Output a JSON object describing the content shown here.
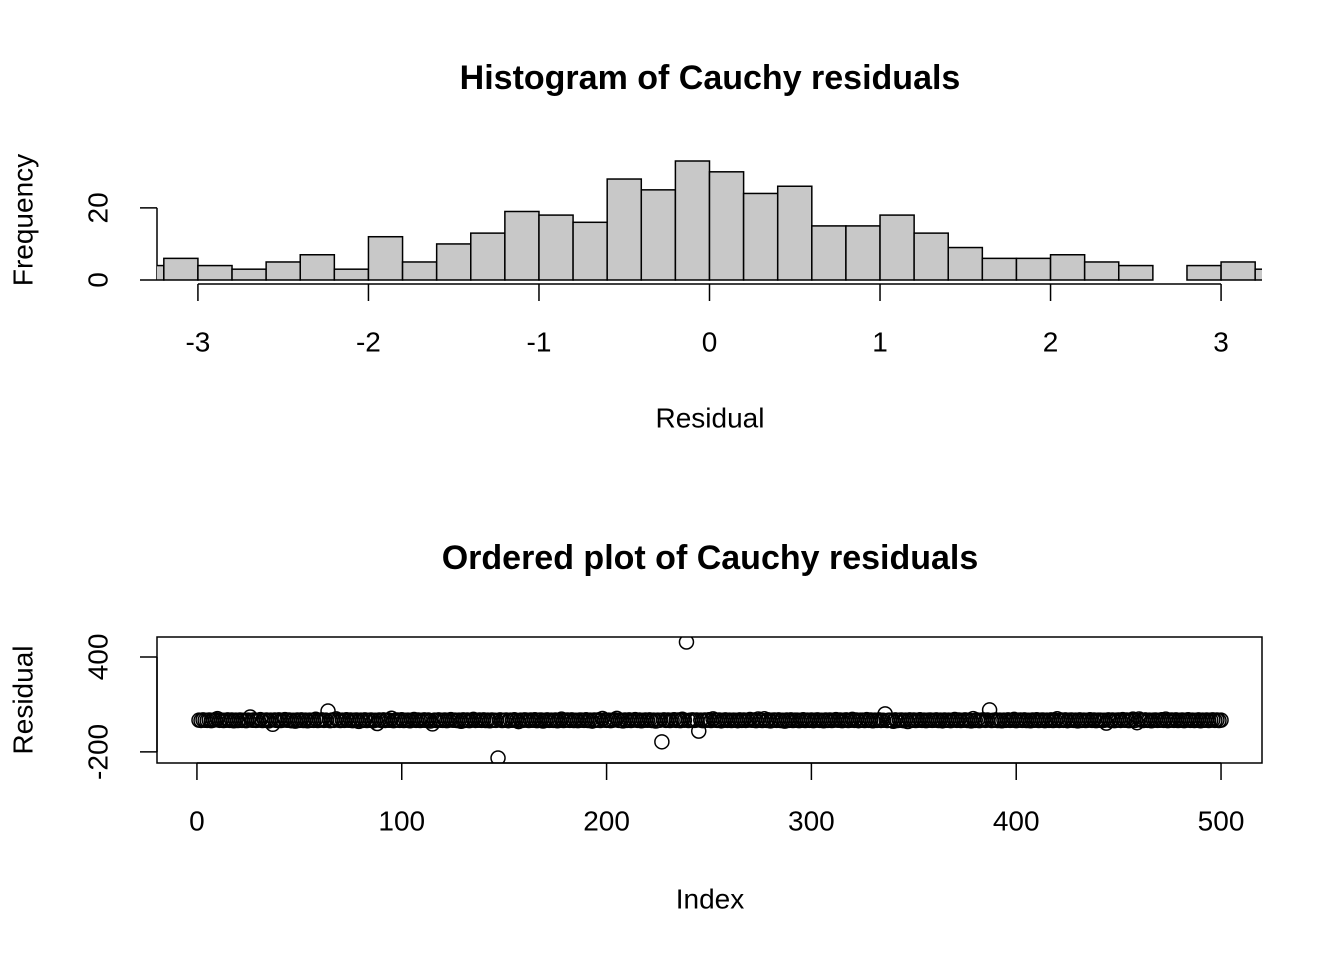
{
  "chart_data": [
    {
      "type": "histogram",
      "title": "Histogram of Cauchy residuals",
      "xlabel": "Residual",
      "ylabel": "Frequency",
      "bins": [
        -3.4,
        -3.2,
        -3.0,
        -2.8,
        -2.6,
        -2.4,
        -2.2,
        -2.0,
        -1.8,
        -1.6,
        -1.4,
        -1.2,
        -1.0,
        -0.8,
        -0.6,
        -0.4,
        -0.2,
        0,
        0.2,
        0.4,
        0.6,
        0.8,
        1.0,
        1.2,
        1.4,
        1.6,
        1.8,
        2.0,
        2.2,
        2.4,
        2.6,
        2.8,
        3.0,
        3.2,
        3.4
      ],
      "counts": [
        4,
        6,
        4,
        3,
        5,
        7,
        3,
        12,
        5,
        10,
        13,
        19,
        18,
        16,
        28,
        25,
        33,
        30,
        24,
        26,
        15,
        15,
        18,
        13,
        9,
        6,
        6,
        7,
        5,
        4,
        0,
        4,
        5,
        3
      ],
      "color": "#c8c8c8",
      "xlim": [
        -3.24,
        3.24
      ],
      "xticks": [
        -3,
        -2,
        -1,
        0,
        1,
        2,
        3
      ],
      "ylim": [
        0,
        33
      ],
      "yticks": [
        0,
        20
      ]
    },
    {
      "type": "scatter",
      "title": "Ordered plot of Cauchy residuals",
      "xlabel": "Index",
      "ylabel": "Residual",
      "x": [
        1,
        2,
        3,
        4,
        5,
        6,
        7,
        8,
        9,
        10,
        11,
        12,
        13,
        14,
        15,
        16,
        17,
        18,
        19,
        20,
        21,
        22,
        23,
        24,
        25,
        26,
        27,
        28,
        29,
        30,
        31,
        32,
        33,
        34,
        35,
        36,
        37,
        38,
        39,
        40,
        41,
        42,
        43,
        44,
        45,
        46,
        47,
        48,
        49,
        50,
        51,
        52,
        53,
        54,
        55,
        56,
        57,
        58,
        59,
        60,
        61,
        62,
        63,
        64,
        65,
        66,
        67,
        68,
        69,
        70,
        71,
        72,
        73,
        74,
        75,
        76,
        77,
        78,
        79,
        80,
        81,
        82,
        83,
        84,
        85,
        86,
        87,
        88,
        89,
        90,
        91,
        92,
        93,
        94,
        95,
        96,
        97,
        98,
        99,
        100,
        101,
        102,
        103,
        104,
        105,
        106,
        107,
        108,
        109,
        110,
        111,
        112,
        113,
        114,
        115,
        116,
        117,
        118,
        119,
        120,
        121,
        122,
        123,
        124,
        125,
        126,
        127,
        128,
        129,
        130,
        131,
        132,
        133,
        134,
        135,
        136,
        137,
        138,
        139,
        140,
        141,
        142,
        143,
        144,
        145,
        146,
        147,
        148,
        149,
        150,
        151,
        152,
        153,
        154,
        155,
        156,
        157,
        158,
        159,
        160,
        161,
        162,
        163,
        164,
        165,
        166,
        167,
        168,
        169,
        170,
        171,
        172,
        173,
        174,
        175,
        176,
        177,
        178,
        179,
        180,
        181,
        182,
        183,
        184,
        185,
        186,
        187,
        188,
        189,
        190,
        191,
        192,
        193,
        194,
        195,
        196,
        197,
        198,
        199,
        200,
        201,
        202,
        203,
        204,
        205,
        206,
        207,
        208,
        209,
        210,
        211,
        212,
        213,
        214,
        215,
        216,
        217,
        218,
        219,
        220,
        221,
        222,
        223,
        224,
        225,
        226,
        227,
        228,
        229,
        230,
        231,
        232,
        233,
        234,
        235,
        236,
        237,
        238,
        239,
        240,
        241,
        242,
        243,
        244,
        245,
        246,
        247,
        248,
        249,
        250,
        251,
        252,
        253,
        254,
        255,
        256,
        257,
        258,
        259,
        260,
        261,
        262,
        263,
        264,
        265,
        266,
        267,
        268,
        269,
        270,
        271,
        272,
        273,
        274,
        275,
        276,
        277,
        278,
        279,
        280,
        281,
        282,
        283,
        284,
        285,
        286,
        287,
        288,
        289,
        290,
        291,
        292,
        293,
        294,
        295,
        296,
        297,
        298,
        299,
        300,
        301,
        302,
        303,
        304,
        305,
        306,
        307,
        308,
        309,
        310,
        311,
        312,
        313,
        314,
        315,
        316,
        317,
        318,
        319,
        320,
        321,
        322,
        323,
        324,
        325,
        326,
        327,
        328,
        329,
        330,
        331,
        332,
        333,
        334,
        335,
        336,
        337,
        338,
        339,
        340,
        341,
        342,
        343,
        344,
        345,
        346,
        347,
        348,
        349,
        350,
        351,
        352,
        353,
        354,
        355,
        356,
        357,
        358,
        359,
        360,
        361,
        362,
        363,
        364,
        365,
        366,
        367,
        368,
        369,
        370,
        371,
        372,
        373,
        374,
        375,
        376,
        377,
        378,
        379,
        380,
        381,
        382,
        383,
        384,
        385,
        386,
        387,
        388,
        389,
        390,
        391,
        392,
        393,
        394,
        395,
        396,
        397,
        398,
        399,
        400,
        401,
        402,
        403,
        404,
        405,
        406,
        407,
        408,
        409,
        410,
        411,
        412,
        413,
        414,
        415,
        416,
        417,
        418,
        419,
        420,
        421,
        422,
        423,
        424,
        425,
        426,
        427,
        428,
        429,
        430,
        431,
        432,
        433,
        434,
        435,
        436,
        437,
        438,
        439,
        440,
        441,
        442,
        443,
        444,
        445,
        446,
        447,
        448,
        449,
        450,
        451,
        452,
        453,
        454,
        455,
        456,
        457,
        458,
        459,
        460,
        461,
        462,
        463,
        464,
        465,
        466,
        467,
        468,
        469,
        470,
        471,
        472,
        473,
        474,
        475,
        476,
        477,
        478,
        479,
        480,
        481,
        482,
        483,
        484,
        485,
        486,
        487,
        488,
        489,
        490,
        491,
        492,
        493,
        494,
        495,
        496,
        497,
        498,
        499,
        500
      ],
      "values": [
        0.5,
        -1.2,
        2.1,
        0.3,
        -0.8,
        1.5,
        -2.3,
        0.9,
        3.4,
        10.5,
        -0.4,
        1.1,
        -1.7,
        0.2,
        2.8,
        -0.6,
        1.3,
        -3.1,
        0.7,
        -1.5,
        1.8,
        -0.9,
        0.4,
        -2.6,
        1.2,
        20.3,
        -0.3,
        2.4,
        -1.1,
        0.6,
        3.7,
        -1.9,
        0.1,
        1.6,
        -4.2,
        0.8,
        -25.4,
        1.4,
        -0.7,
        2.2,
        -1.3,
        0.5,
        4.1,
        -0.2,
        1.9,
        -2.8,
        0.3,
        -5.6,
        1.7,
        -0.5,
        2.6,
        -1.4,
        0.9,
        -3.3,
        1.1,
        0.2,
        -0.8,
        6.4,
        -1.6,
        0.4,
        2.3,
        -1.1,
        0.7,
        58.2,
        -2.1,
        1.5,
        -0.4,
        8.7,
        0.6,
        -1.8,
        1.2,
        -0.9,
        3.1,
        -0.3,
        1.8,
        -2.4,
        0.5,
        1.3,
        -7.1,
        0.8,
        -0.6,
        2.7,
        -1.5,
        0.4,
        1.9,
        -3.6,
        0.2,
        -20.5,
        1.4,
        -0.7,
        2.1,
        -1.2,
        0.9,
        -0.1,
        12.4,
        -2.2,
        0.6,
        1.7,
        -0.8,
        3.3,
        -1.4,
        0.3,
        1.1,
        -2.9,
        0.7,
        4.6,
        -0.5,
        1.6,
        -1.9,
        0.2,
        2.5,
        -0.6,
        1.3,
        -4.4,
        -23.1,
        0.9,
        -1.7,
        2.2,
        0.4,
        -0.9,
        1.5,
        -2.5,
        0.8,
        3.9,
        -0.3,
        1.2,
        -1.6,
        0.5,
        -6.2,
        2.1,
        -0.7,
        1.4,
        -2.1,
        0.6,
        5.3,
        -1.2,
        0.3,
        1.9,
        -0.8,
        2.4,
        -1.5,
        0.7,
        -3.4,
        1.6,
        0.2,
        -0.9,
        -238.4,
        2.7,
        -1.3,
        0.4,
        1.8,
        -2.7,
        0.9,
        -0.2,
        3.6,
        -1.9,
        -8.3,
        1.1,
        -0.5,
        2.3,
        0.6,
        -1.4,
        1.7,
        -0.3,
        2.9,
        -2.2,
        0.8,
        1.3,
        -4.7,
        0.1,
        2.2,
        -1.1,
        0.7,
        -0.6,
        1.5,
        -3.2,
        0.4,
        7.2,
        -1.8,
        0.9,
        1.6,
        -0.7,
        2.8,
        -1.5,
        0.3,
        -2.6,
        1.9,
        0.5,
        -0.9,
        3.2,
        -1.3,
        0.8,
        -5.1,
        1.4,
        -0.2,
        2.3,
        -1.7,
        10.8,
        0.6,
        -0.4,
        1.2,
        -2.3,
        0.7,
        2.6,
        12.1,
        -1.1,
        0.4,
        -3.8,
        1.8,
        -0.6,
        2.1,
        -1.5,
        0.9,
        4.4,
        -0.8,
        1.3,
        -2.9,
        0.2,
        1.7,
        -0.3,
        2.5,
        -1.2,
        0.6,
        -4.9,
        1.1,
        0.3,
        -136.2,
        2.4,
        -0.7,
        1.5,
        -1.8,
        0.8,
        3.5,
        -0.5,
        1.9,
        -2.4,
        6.1,
        0.4,
        494.3,
        -1.3,
        0.9,
        2.2,
        -0.6,
        1.4,
        -68.5,
        0.7,
        -2.1,
        1.6,
        -0.2,
        3.1,
        -1.4,
        8.9,
        0.5,
        -0.9,
        1.8,
        -3.5,
        0.3,
        2.7,
        -1.1,
        0.6,
        -1.9,
        1.2,
        0.4,
        -2.8,
        2.3,
        -0.5,
        1.5,
        -1.2,
        0.8,
        4.7,
        -0.3,
        1.9,
        -2.2,
        7.6,
        0.6,
        -1.6,
        9.3,
        -0.8,
        2.1,
        -3.9,
        0.7,
        1.4,
        -0.6,
        2.5,
        -1.7,
        0.3,
        -5.4,
        1.6,
        -0.9,
        2.8,
        -1.3,
        0.5,
        1.1,
        -2.6,
        0.2,
        3.4,
        -1.5,
        0.8,
        -0.4,
        1.7,
        -2.3,
        0.9,
        2.2,
        -1.1,
        0.4,
        -3.1,
        1.5,
        -0.7,
        1.9,
        -1.8,
        0.6,
        4.2,
        -0.2,
        1.3,
        -2.5,
        0.8,
        2.6,
        -1.4,
        0.3,
        5.8,
        -0.9,
        1.6,
        -2.7,
        0.5,
        1.2,
        -1.6,
        3.8,
        -0.4,
        1.8,
        -3.3,
        0.7,
        -0.8,
        2.4,
        -1.2,
        0.2,
        40.6,
        -1.7,
        1.1,
        -0.5,
        -6.4,
        2.1,
        -1.3,
        0.6,
        1.5,
        -2.1,
        0.9,
        -7.8,
        2.7,
        -0.6,
        1.4,
        -1.9,
        0.3,
        3.3,
        -0.8,
        1.2,
        -2.4,
        0.5,
        1.9,
        -1.1,
        0.4,
        2.6,
        -1.5,
        0.8,
        -3.6,
        1.7,
        -0.3,
        1.1,
        -2.2,
        0.6,
        4.9,
        -0.7,
        1.5,
        -1.8,
        0.2,
        2.3,
        -1.2,
        0.9,
        -4.1,
        10.2,
        -0.5,
        1.4,
        -2.6,
        0.7,
        2.1,
        -0.9,
        1.6,
        65.3,
        -1.4,
        0.3,
        2.8,
        -1.7,
        0.8,
        -3.2,
        1.2,
        -0.4,
        2.4,
        -1.1,
        0.6,
        5.5,
        -2.3,
        0.9,
        1.3,
        -0.6,
        2.2,
        -1.5,
        0.4,
        -2.9,
        1.8,
        -0.2,
        3.6,
        -1.3,
        0.7,
        1.5,
        -2.4,
        0.5,
        -0.8,
        2.7,
        -1.6,
        0.3,
        9.8,
        -1.2,
        1.9,
        -0.4,
        2.3,
        -2.8,
        0.6,
        1.4,
        -1.1,
        0.8,
        -3.7,
        2.1,
        -0.5,
        1.2,
        -1.9,
        0.4,
        3.2,
        -0.9,
        1.6,
        -2.3,
        0.7,
        1.1,
        -1.4,
        0.3,
        -18.2,
        2.5,
        -0.7,
        1.8,
        -2.6,
        0.5,
        1.3,
        -1.2,
        4.3,
        -0.3,
        1.7,
        -2.1,
        0.9,
        6.8,
        -0.6,
        -15.4,
        8.1,
        0.6,
        -1.8,
        2.4,
        -0.4,
        1.2,
        -3.1,
        0.8,
        1.5,
        -1.1,
        0.2,
        2.9,
        -0.9,
        7.4,
        -2.2,
        0.7,
        1.6,
        -0.5,
        2.1,
        -1.7,
        0.4,
        1.3,
        -2.4,
        0.9,
        3.5,
        -0.6,
        1.1,
        -1.5,
        0.3,
        2.2,
        -2.9,
        0.8,
        -0.2,
        1.7,
        -1.3,
        0.5,
        2.6,
        -0.8,
        1.4,
        -1.9,
        0.6
      ],
      "color": "#000000",
      "xlim": [
        -19.5,
        520
      ],
      "xticks": [
        0,
        100,
        200,
        300,
        400,
        500
      ],
      "ylim": [
        -270,
        526
      ],
      "yticks": [
        -200,
        400
      ],
      "box": true
    }
  ]
}
